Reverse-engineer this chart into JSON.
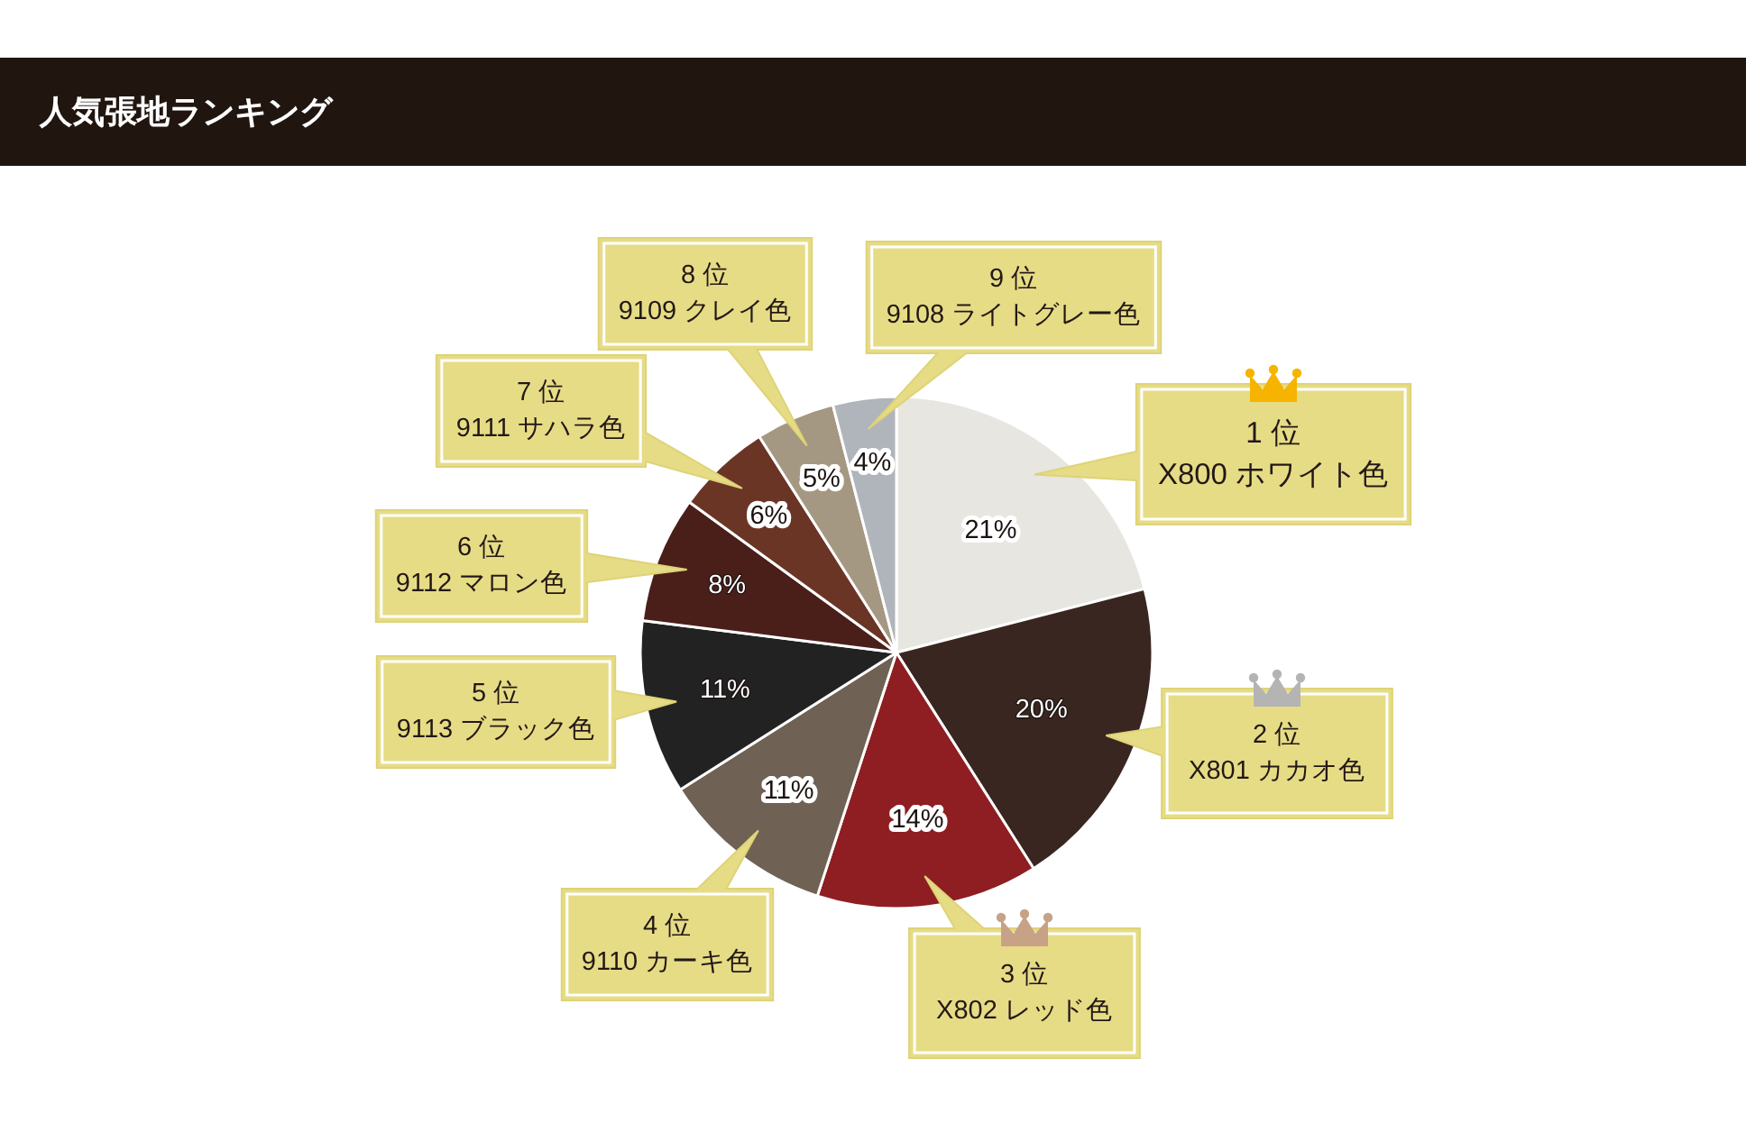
{
  "chart_data": {
    "type": "pie",
    "title": "人気張地ランキング",
    "categories": [
      "1 位\nX800 ホワイト色",
      "2 位\nX801 カカオ色",
      "3 位\nX802 レッド色",
      "4 位\n9110 カーキ色",
      "5 位\n9113 ブラック色",
      "6 位\n9112 マロン色",
      "7 位\n9111 サハラ色",
      "8 位\n9109 クレイ色",
      "9 位\n9108 ライトグレー色"
    ],
    "values": [
      21,
      20,
      14,
      11,
      11,
      8,
      6,
      5,
      4
    ],
    "colors": [
      "#e8e6e1",
      "#3a2620",
      "#8e1e22",
      "#6f6254",
      "#222222",
      "#4a1f19",
      "#6b3526",
      "#a59883",
      "#b0b5bb"
    ],
    "value_labels": [
      "21%",
      "20%",
      "14%",
      "11%",
      "11%",
      "8%",
      "6%",
      "5%",
      "4%"
    ]
  }
}
